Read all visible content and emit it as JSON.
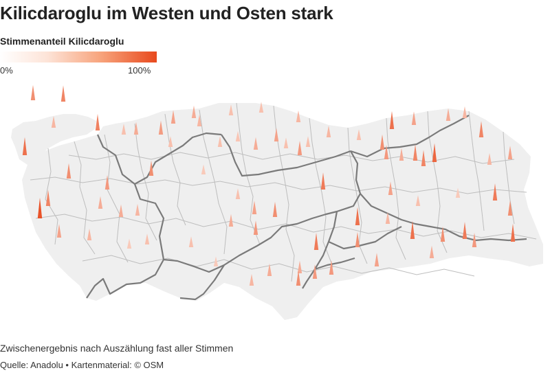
{
  "header": {
    "title": "Kilicdaroglu im Westen und Osten stark"
  },
  "legend": {
    "title": "Stimmenanteil Kilicdaroglu",
    "min_label": "0%",
    "max_label": "100%",
    "color_low": "#ffffff",
    "color_high": "#e8491d"
  },
  "map": {
    "land_color": "#efefef",
    "province_border_color": "#bdbdbd",
    "region_border_color": "#7a7a7a",
    "spike_color": "#e8491d",
    "spikes": [
      {
        "share": 0.55
      },
      {
        "share": 0.6
      },
      {
        "share": 0.35
      },
      {
        "share": 0.62
      },
      {
        "share": 0.7
      },
      {
        "share": 0.55
      },
      {
        "share": 0.6
      },
      {
        "share": 0.5
      },
      {
        "share": 0.45
      },
      {
        "share": 0.35
      },
      {
        "share": 0.4
      },
      {
        "share": 0.5
      },
      {
        "share": 0.3
      },
      {
        "share": 0.4
      },
      {
        "share": 0.48
      },
      {
        "share": 0.45
      },
      {
        "share": 0.4
      },
      {
        "share": 0.35
      },
      {
        "share": 0.3
      },
      {
        "share": 0.55
      },
      {
        "share": 0.25
      },
      {
        "share": 0.3
      },
      {
        "share": 0.28
      },
      {
        "share": 0.4
      },
      {
        "share": 0.45
      },
      {
        "share": 0.3
      },
      {
        "share": 0.5
      },
      {
        "share": 0.3
      },
      {
        "share": 0.35
      },
      {
        "share": 0.3
      },
      {
        "share": 0.3
      },
      {
        "share": 0.35
      },
      {
        "share": 0.25
      },
      {
        "share": 0.3
      },
      {
        "share": 0.4
      },
      {
        "share": 0.35
      },
      {
        "share": 0.3
      },
      {
        "share": 0.25
      },
      {
        "share": 0.4
      },
      {
        "share": 0.3
      },
      {
        "share": 0.45
      },
      {
        "share": 0.5
      },
      {
        "share": 0.55
      },
      {
        "share": 0.65
      },
      {
        "share": 0.4
      },
      {
        "share": 0.35
      },
      {
        "share": 0.4
      },
      {
        "share": 0.5
      },
      {
        "share": 0.65
      },
      {
        "share": 0.7
      },
      {
        "share": 0.55
      },
      {
        "share": 0.45
      },
      {
        "share": 0.35
      },
      {
        "share": 0.4
      },
      {
        "share": 0.6
      },
      {
        "share": 0.55
      },
      {
        "share": 0.7
      },
      {
        "share": 0.45
      },
      {
        "share": 0.6
      },
      {
        "share": 0.75
      },
      {
        "share": 0.4
      },
      {
        "share": 0.35
      },
      {
        "share": 0.6
      },
      {
        "share": 0.35
      },
      {
        "share": 0.45
      },
      {
        "share": 0.55
      },
      {
        "share": 0.25
      },
      {
        "share": 0.3
      },
      {
        "share": 0.5
      },
      {
        "share": 0.3
      },
      {
        "share": 0.4
      },
      {
        "share": 0.55
      },
      {
        "share": 0.65
      },
      {
        "share": 0.5
      },
      {
        "share": 0.7
      },
      {
        "share": 0.65
      },
      {
        "share": 0.7
      },
      {
        "share": 0.45
      },
      {
        "share": 0.55
      },
      {
        "share": 0.5
      },
      {
        "share": 0.85
      }
    ]
  },
  "footer": {
    "note": "Zwischenergebnis nach Auszählung fast aller Stimmen",
    "source": "Quelle: Anadolu • Kartenmaterial: © OSM"
  }
}
